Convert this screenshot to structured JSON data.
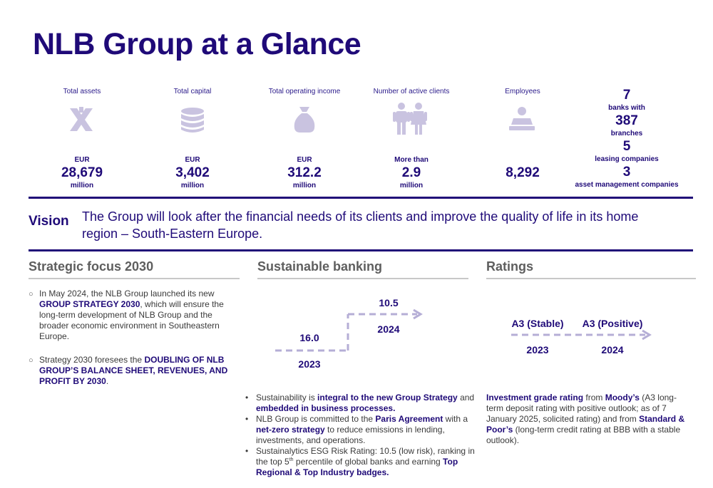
{
  "title": "NLB Group at a Glance",
  "stats": [
    {
      "label": "Total assets",
      "icon": "arrows-exchange-icon",
      "prefix": "EUR",
      "value": "28,679",
      "suffix": "million"
    },
    {
      "label": "Total capital",
      "icon": "coin-stack-icon",
      "prefix": "EUR",
      "value": "3,402",
      "suffix": "million"
    },
    {
      "label": "Total operating income",
      "icon": "money-bag-icon",
      "prefix": "EUR",
      "value": "312.2",
      "suffix": "million"
    },
    {
      "label": "Number of active clients",
      "icon": "people-icon",
      "prefix": "More than",
      "value": "2.9",
      "suffix": "million"
    },
    {
      "label": "Employees",
      "icon": "employee-icon",
      "prefix": "",
      "value": "8,292",
      "suffix": ""
    }
  ],
  "network": [
    {
      "number": "7",
      "text": "banks with"
    },
    {
      "number": "387",
      "text": "branches"
    },
    {
      "number": "5",
      "text": "leasing companies"
    },
    {
      "number": "3",
      "text": "asset management companies"
    }
  ],
  "vision": {
    "label": "Vision",
    "text": "The Group will look after the financial needs of its clients and improve the quality of life in its home region – South-Eastern Europe."
  },
  "strategic": {
    "heading": "Strategic focus 2030",
    "item1": {
      "a": "In May 2024, the NLB Group launched its new ",
      "b": "GROUP STRATEGY 2030",
      "c": ", which will ensure the long-term development of NLB Group and the broader economic environment in Southeastern Europe."
    },
    "item2": {
      "a": "Strategy 2030 foresees the ",
      "b": "DOUBLING OF NLB GROUP’S BALANCE SHEET, REVENUES, AND PROFIT BY 2030",
      "c": "."
    }
  },
  "sustainable": {
    "heading": "Sustainable banking",
    "diagram": {
      "from_value": "16.0",
      "from_year": "2023",
      "to_value": "10.5",
      "to_year": "2024"
    },
    "b1": {
      "a": "Sustainability is ",
      "b": "integral to the new Group Strategy",
      "c": " and ",
      "d": "embedded in business processes."
    },
    "b2": {
      "a": "NLB Group is committed to the ",
      "b": "Paris Agreement",
      "c": " with a ",
      "d": "net-zero strategy",
      "e": " to reduce emissions in lending, investments, and operations."
    },
    "b3": {
      "a": "Sustainalytics ESG Risk Rating: 10.5 (low risk), ranking in the top 5",
      "sup": "th",
      "b": " percentile of global banks and earning ",
      "c": "Top Regional & Top Industry badges."
    }
  },
  "ratings": {
    "heading": "Ratings",
    "diagram": {
      "from_value": "A3 (Stable)",
      "from_year": "2023",
      "to_value": "A3 (Positive)",
      "to_year": "2024"
    },
    "text": {
      "a": "Investment grade rating",
      "b": " from ",
      "c": "Moody’s",
      "d": " (A3 long-term deposit rating with positive outlook; as of 7 January 2025, solicited rating) and from ",
      "e": "Standard & Poor’s",
      "f": " (long-term credit rating at BBB with a stable outlook)."
    }
  },
  "colors": {
    "brand": "#1f0a78",
    "icon": "#c9c3e0",
    "dash": "#b5aed6"
  }
}
